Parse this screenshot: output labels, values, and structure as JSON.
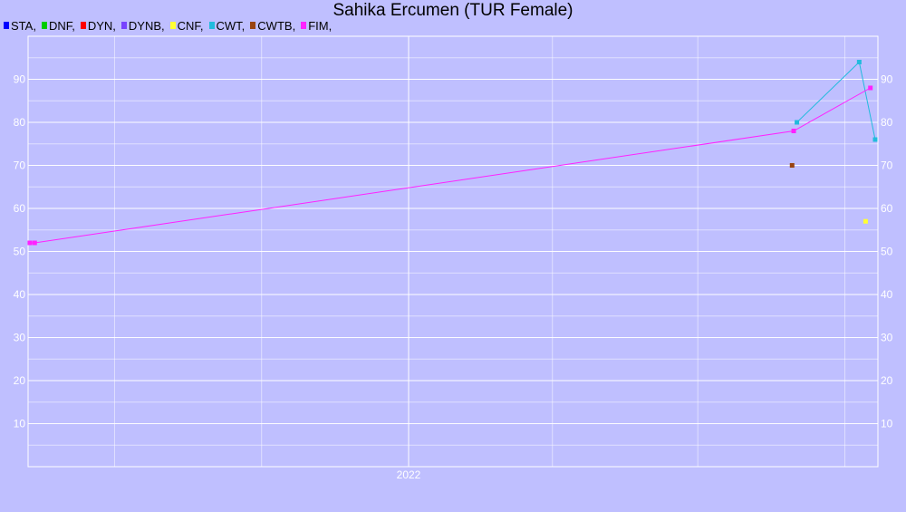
{
  "chart_data": {
    "type": "line",
    "title": "Sahika Ercumen (TUR Female)",
    "xlabel": "",
    "ylabel": "",
    "ylim": [
      0,
      100
    ],
    "x_tick_labels": [
      "2022"
    ],
    "y_tick_labels": [
      10,
      20,
      30,
      40,
      50,
      60,
      70,
      80,
      90
    ],
    "grid": true,
    "legend_placement": "top-left",
    "legend": [
      {
        "label": "STA,",
        "color": "#0000ff"
      },
      {
        "label": "DNF,",
        "color": "#00cc00"
      },
      {
        "label": "DYN,",
        "color": "#ff0000"
      },
      {
        "label": "DYNB,",
        "color": "#7744ff"
      },
      {
        "label": "CNF,",
        "color": "#ffff33"
      },
      {
        "label": "CWT,",
        "color": "#22bbdd"
      },
      {
        "label": "CWTB,",
        "color": "#994411"
      },
      {
        "label": "FIM,",
        "color": "#ff22ff"
      }
    ],
    "series": [
      {
        "name": "CNF",
        "color": "#ffff33",
        "line": false,
        "points": [
          {
            "x": "2022-10-14",
            "y": 57
          }
        ]
      },
      {
        "name": "CWT",
        "color": "#22bbdd",
        "line": true,
        "points": [
          {
            "x": "2022-09-01",
            "y": 80
          },
          {
            "x": "2022-10-10",
            "y": 94
          },
          {
            "x": "2022-10-20",
            "y": 76
          }
        ]
      },
      {
        "name": "CWTB",
        "color": "#994411",
        "line": false,
        "points": [
          {
            "x": "2022-08-29",
            "y": 70
          }
        ]
      },
      {
        "name": "FIM",
        "color": "#ff22ff",
        "line": true,
        "points": [
          {
            "x": "2021-05-09",
            "y": 52
          },
          {
            "x": "2021-05-12",
            "y": 52
          },
          {
            "x": "2022-08-30",
            "y": 78
          },
          {
            "x": "2022-10-17",
            "y": 88
          }
        ]
      }
    ]
  }
}
